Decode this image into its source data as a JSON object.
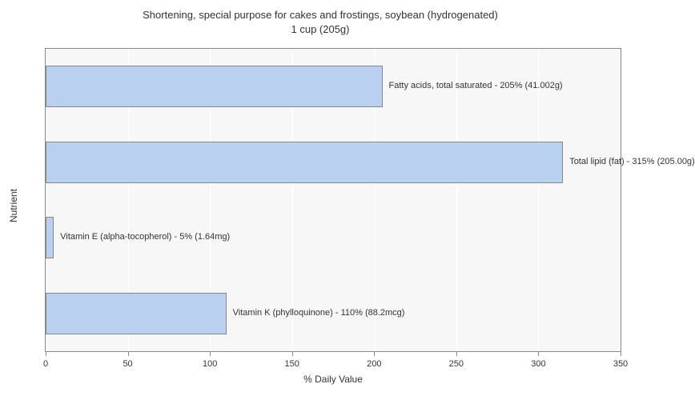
{
  "chart": {
    "type": "bar-horizontal",
    "title_line1": "Shortening, special purpose for cakes and frostings, soybean (hydrogenated)",
    "title_line2": "1 cup (205g)",
    "title_fontsize": 13,
    "background_color": "#ffffff",
    "plot_background_color": "#f7f7f7",
    "grid_color": "#ffffff",
    "border_color": "#888888",
    "bar_color": "#b9d0f0",
    "bar_border_color": "#888888",
    "label_fontsize": 11,
    "x_axis": {
      "label": "% Daily Value",
      "min": 0,
      "max": 350,
      "tick_step": 50,
      "ticks": [
        0,
        50,
        100,
        150,
        200,
        250,
        300,
        350
      ]
    },
    "y_axis": {
      "label": "Nutrient"
    },
    "bars": [
      {
        "label": "Fatty acids, total saturated - 205% (41.002g)",
        "value": 205
      },
      {
        "label": "Total lipid (fat) - 315% (205.00g)",
        "value": 315
      },
      {
        "label": "Vitamin E (alpha-tocopherol) - 5% (1.64mg)",
        "value": 5
      },
      {
        "label": "Vitamin K (phylloquinone) - 110% (88.2mcg)",
        "value": 110
      }
    ]
  }
}
